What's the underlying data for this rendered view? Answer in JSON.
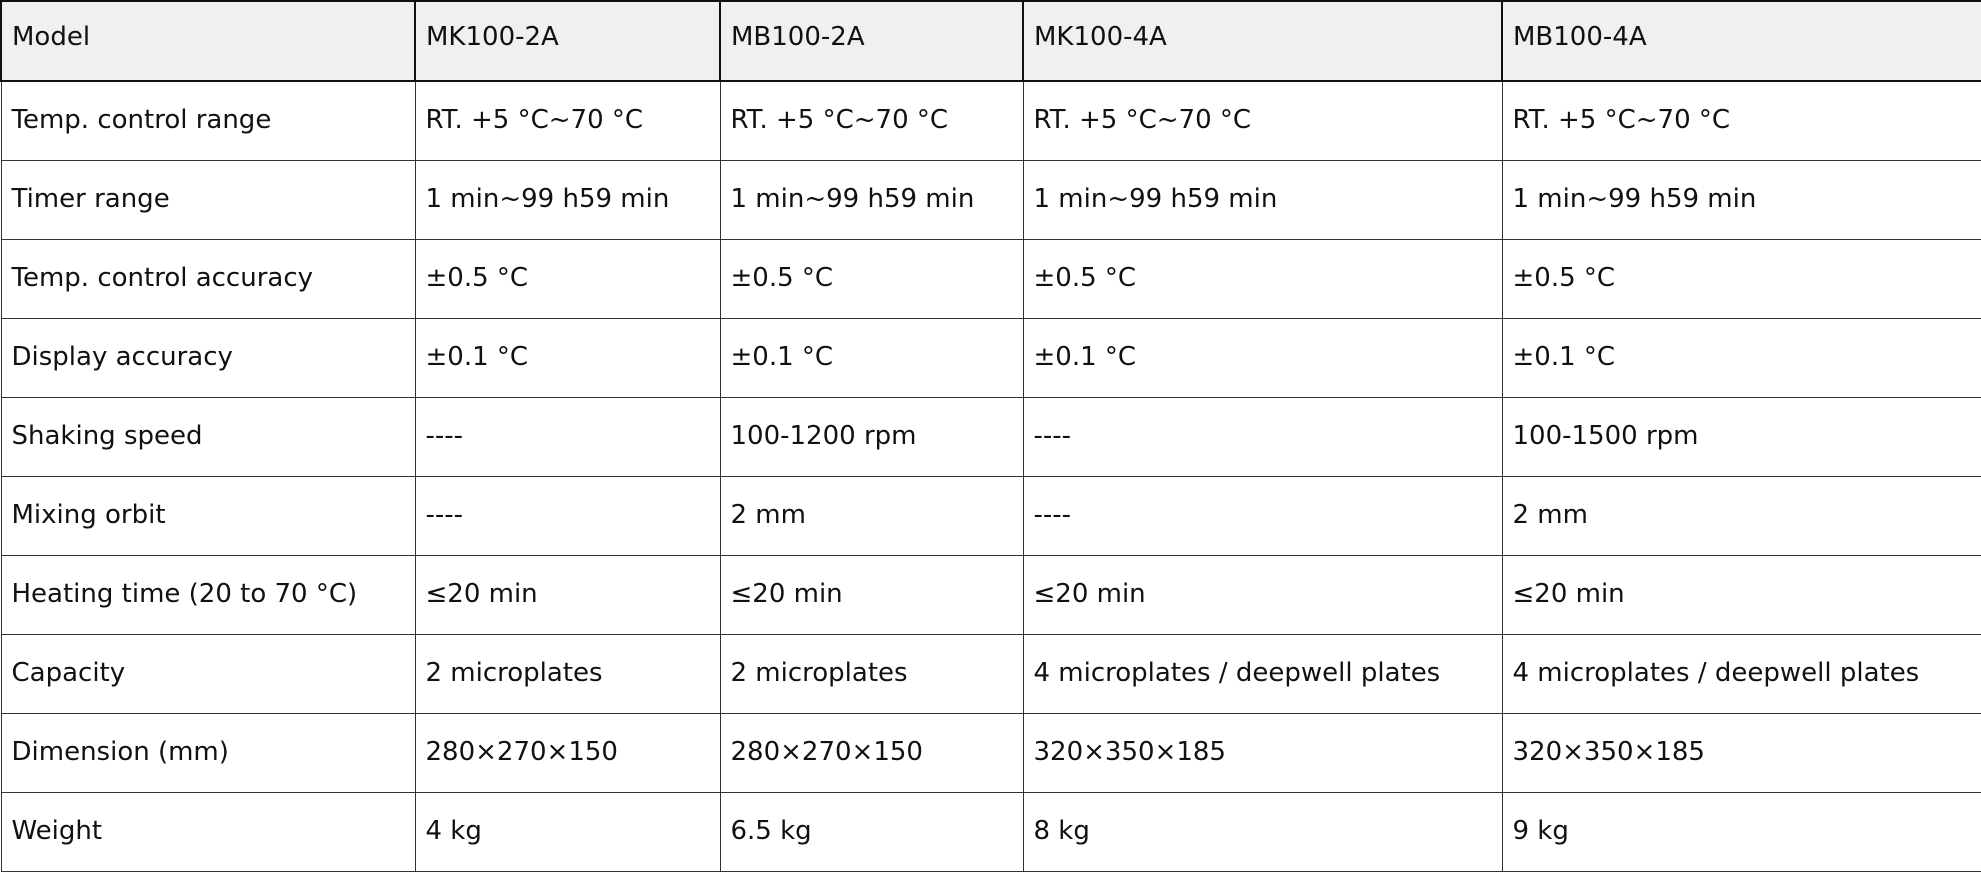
{
  "table": {
    "header": [
      "Model",
      "MK100-2A",
      "MB100-2A",
      "MK100-4A",
      "MB100-4A"
    ],
    "rows": [
      [
        "Temp. control range",
        "RT. +5 °C~70 °C",
        "RT. +5 °C~70 °C",
        "RT. +5 °C~70 °C",
        "RT. +5 °C~70 °C"
      ],
      [
        "Timer range",
        "1 min~99 h59 min",
        "1 min~99 h59 min",
        "1 min~99 h59 min",
        "1 min~99 h59 min"
      ],
      [
        "Temp. control accuracy",
        "±0.5 °C",
        "±0.5 °C",
        "±0.5 °C",
        "±0.5 °C"
      ],
      [
        "Display accuracy",
        "±0.1 °C",
        "±0.1 °C",
        "±0.1 °C",
        "±0.1 °C"
      ],
      [
        "Shaking speed",
        "----",
        "100-1200 rpm",
        "----",
        "100-1500 rpm"
      ],
      [
        "Mixing orbit",
        "----",
        "2 mm",
        "----",
        "2 mm"
      ],
      [
        "Heating time (20 to 70 °C)",
        "≤20 min",
        "≤20 min",
        "≤20 min",
        "≤20 min"
      ],
      [
        "Capacity",
        "2 microplates",
        "2 microplates",
        "4 microplates / deepwell plates",
        "4 microplates / deepwell plates"
      ],
      [
        "Dimension (mm)",
        "280×270×150",
        "280×270×150",
        "320×350×185",
        "320×350×185"
      ],
      [
        "Weight",
        "4 kg",
        "6.5 kg",
        "8 kg",
        "9 kg"
      ]
    ]
  }
}
